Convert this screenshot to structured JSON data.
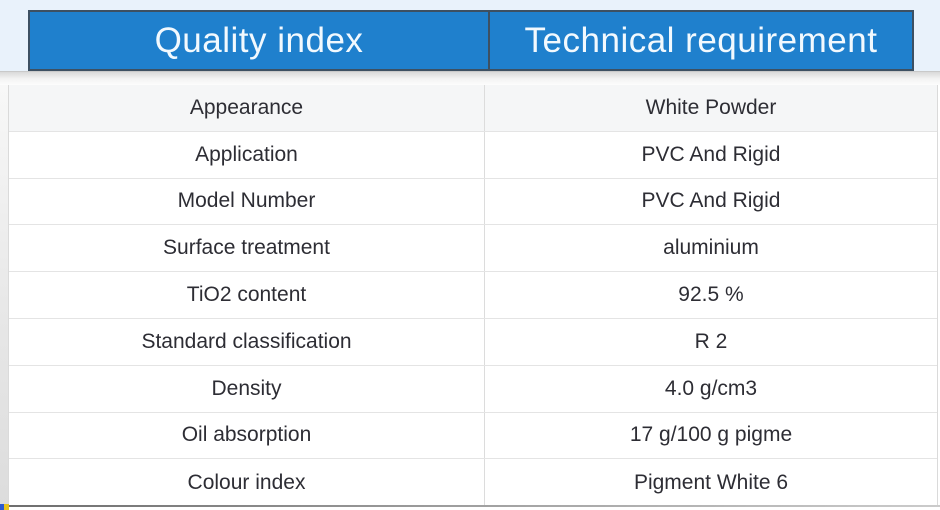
{
  "header": {
    "col1": "Quality index",
    "col2": "Technical requirement"
  },
  "table": {
    "rows": [
      {
        "label": "Appearance",
        "value": "White Powder"
      },
      {
        "label": "Application",
        "value": "PVC And Rigid"
      },
      {
        "label": "Model Number",
        "value": "PVC And Rigid"
      },
      {
        "label": "Surface treatment",
        "value": "aluminium"
      },
      {
        "label": "TiO2 content",
        "value": "92.5 %"
      },
      {
        "label": "Standard classification",
        "value": "R 2"
      },
      {
        "label": "Density",
        "value": "4.0 g/cm3"
      },
      {
        "label": "Oil absorption",
        "value": "17 g/100 g pigme"
      },
      {
        "label": "Colour index",
        "value": "Pigment White 6"
      }
    ]
  },
  "colors": {
    "header_blue": "#1f80cd",
    "header_border": "#3d5062",
    "banner_light_blue": "#e9f2fb",
    "row_text": "#2d2d34",
    "row_border": "#e4e4e4",
    "first_row_bg": "#f5f6f7"
  }
}
